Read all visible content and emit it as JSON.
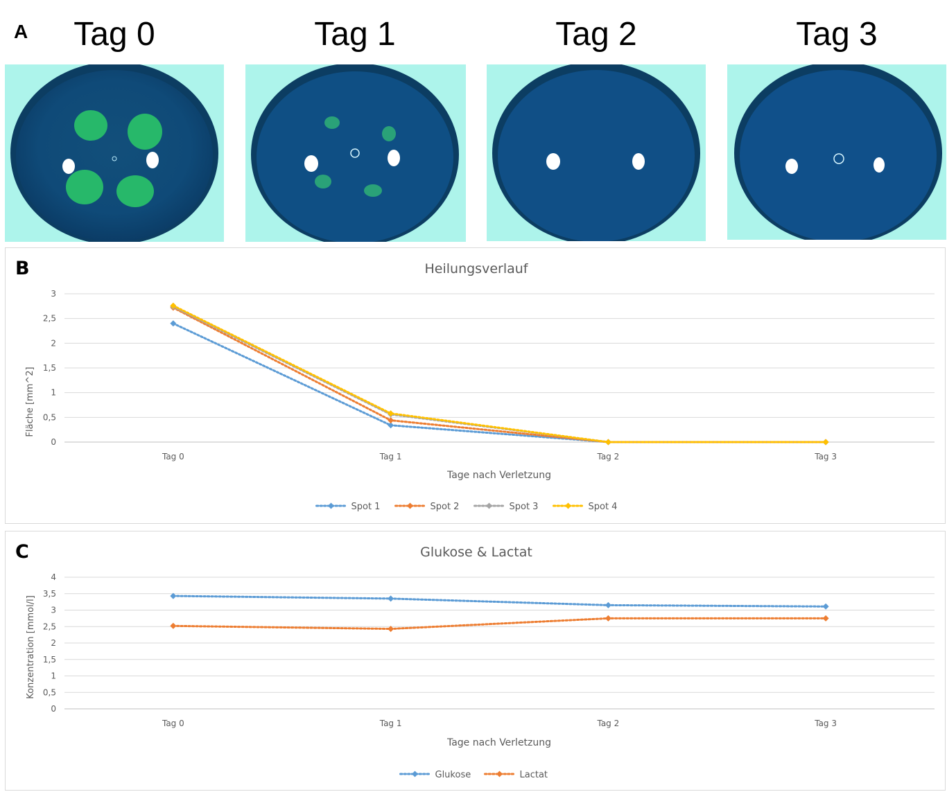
{
  "panel_a": {
    "letter": "A",
    "days": [
      "Tag 0",
      "Tag 1",
      "Tag 2",
      "Tag 3"
    ],
    "colors": {
      "rim": "#9ff0e6",
      "dish": "#0f5f9a",
      "spot": "#27b86a",
      "glare": "#ffffff"
    }
  },
  "chart_data": [
    {
      "panel_letter": "B",
      "type": "line",
      "title": "Heilungsverlauf",
      "xlabel": "Tage nach Verletzung",
      "ylabel": "Fläche [mm^2]",
      "categories": [
        "Tag 0",
        "Tag 1",
        "Tag 2",
        "Tag 3"
      ],
      "ylim": [
        0,
        3
      ],
      "yticks": [
        "0",
        "0,5",
        "1",
        "1,5",
        "2",
        "2,5",
        "3"
      ],
      "grid": true,
      "legend": "bottom",
      "series": [
        {
          "name": "Spot 1",
          "color": "#5b9bd5",
          "values": [
            2.4,
            0.34,
            0.0,
            0.0
          ]
        },
        {
          "name": "Spot 2",
          "color": "#ed7d31",
          "values": [
            2.72,
            0.44,
            0.0,
            0.0
          ]
        },
        {
          "name": "Spot 3",
          "color": "#a5a5a5",
          "values": [
            2.74,
            0.56,
            0.0,
            0.0
          ]
        },
        {
          "name": "Spot 4",
          "color": "#ffc000",
          "values": [
            2.76,
            0.58,
            0.0,
            0.0
          ]
        }
      ]
    },
    {
      "panel_letter": "C",
      "type": "line",
      "title": "Glukose & Lactat",
      "xlabel": "Tage nach Verletzung",
      "ylabel": "Konzentration [mmol/l]",
      "categories": [
        "Tag 0",
        "Tag 1",
        "Tag 2",
        "Tag 3"
      ],
      "ylim": [
        0,
        4
      ],
      "yticks": [
        "0",
        "0,5",
        "1",
        "1,5",
        "2",
        "2,5",
        "3",
        "3,5",
        "4"
      ],
      "grid": true,
      "legend": "bottom",
      "series": [
        {
          "name": "Glukose",
          "color": "#5b9bd5",
          "values": [
            3.43,
            3.35,
            3.15,
            3.11
          ]
        },
        {
          "name": "Lactat",
          "color": "#ed7d31",
          "values": [
            2.52,
            2.43,
            2.75,
            2.75
          ]
        }
      ]
    }
  ]
}
